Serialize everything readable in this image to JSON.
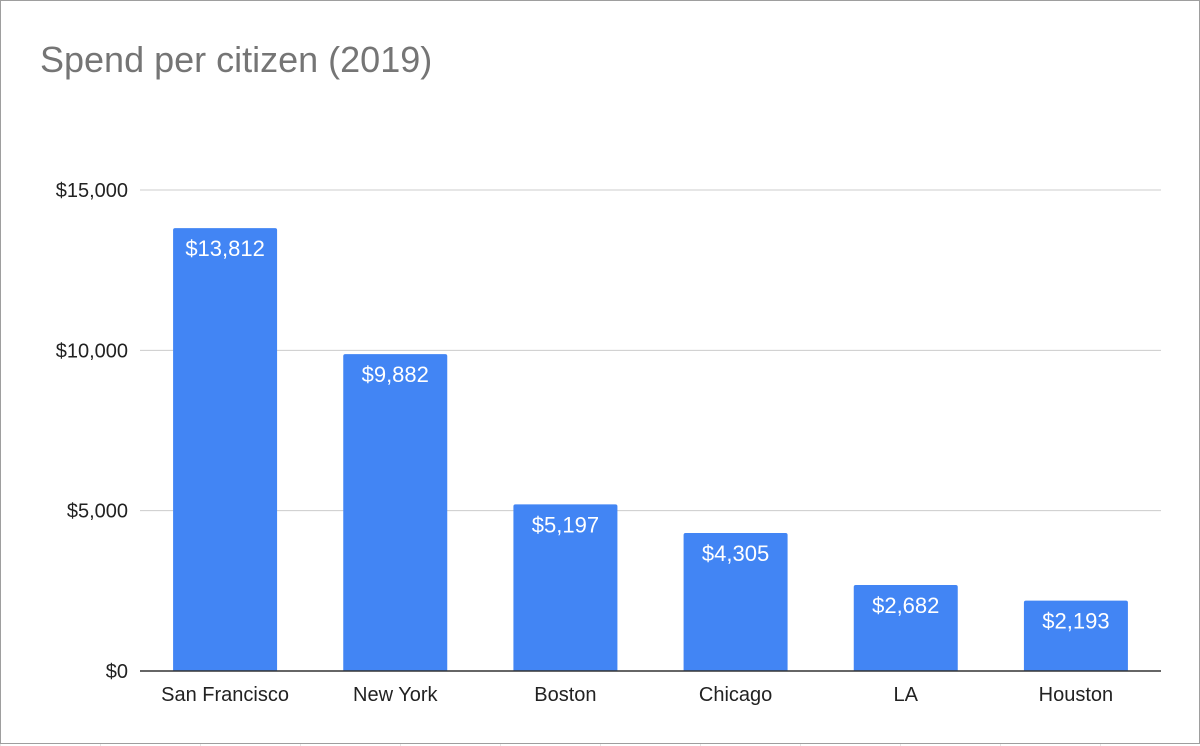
{
  "chart_data": {
    "type": "bar",
    "title": "Spend per citizen (2019)",
    "xlabel": "",
    "ylabel": "",
    "categories": [
      "San Francisco",
      "New York",
      "Boston",
      "Chicago",
      "LA",
      "Houston"
    ],
    "values": [
      13812,
      9882,
      5197,
      4305,
      2682,
      2193
    ],
    "value_labels": [
      "$13,812",
      "$9,882",
      "$5,197",
      "$4,305",
      "$2,682",
      "$2,193"
    ],
    "ylim": [
      0,
      15000
    ],
    "yticks": [
      0,
      5000,
      10000,
      15000
    ],
    "ytick_labels": [
      "$0",
      "$5,000",
      "$10,000",
      "$15,000"
    ],
    "grid": true,
    "legend": "none",
    "colors": {
      "bar": "#4285f4",
      "title": "#757575",
      "gridline": "#cccccc",
      "axis": "#333333"
    }
  }
}
